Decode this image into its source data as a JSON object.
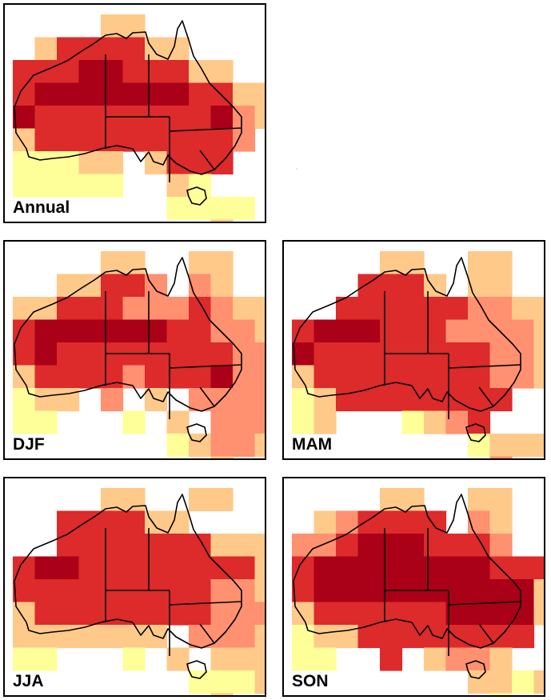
{
  "legend_colors": {
    "0": "#ffff99",
    "1": "#ffc98a",
    "2": "#ff9070",
    "3": "#dd2a2a",
    "4": "#aa0018"
  },
  "outline_color": "#000000",
  "panels": [
    {
      "id": "annual",
      "label": "Annual",
      "grid": [
        "....11......",
        ".1333311....",
        "3334433311..",
        "344444443311",
        "433333333421",
        "13333333332.",
        "00011.1333..",
        "00000..10...",
        ".......0000.",
        ".........1.."
      ]
    },
    {
      "id": "djf",
      "label": "DJF",
      "grid": [
        "....11..11..",
        "..11332.21..",
        "113332223211",
        "344444433221",
        "343333333322",
        "133332333422",
        "011.2.1.2222",
        "00...0.1.222",
        ".......01221",
        ".........1.."
      ]
    },
    {
      "id": "mam",
      "label": "MAM",
      "grid": [
        "....11..11..",
        "...3331.11..",
        "..3333332211",
        "344433322221",
        "433333333221",
        "133333333221",
        "0133333333..",
        "01...0123...",
        "........0111",
        ".........2.."
      ]
    },
    {
      "id": "jja",
      "label": "JJA",
      "grid": [
        "....11..11..",
        "..333311....",
        "..3333333111",
        "344333333331",
        "333333333221",
        "133333333222",
        "1111111.2221",
        "00...0.1.111",
        "........0001",
        ".........1.."
      ]
    },
    {
      "id": "son",
      "label": "SON",
      "grid": [
        "....11..11..",
        ".123333.21..",
        "2234443332..",
        "344444444333",
        "344444444441",
        "1333333444411",
        "01133333333.",
        "00..3.1221..",
        "........1101",
        ".........0.."
      ]
    }
  ]
}
